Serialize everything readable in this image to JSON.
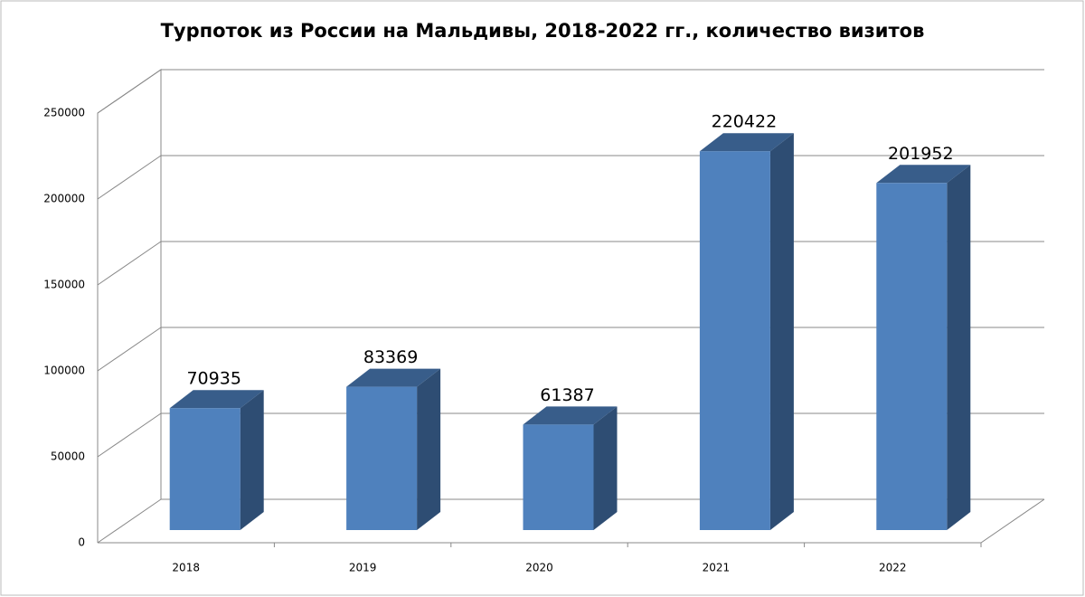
{
  "chart_data": {
    "type": "bar3d",
    "title": "Турпоток из России на Мальдивы, 2018-2022 гг., количество визитов",
    "categories": [
      "2018",
      "2019",
      "2020",
      "2021",
      "2022"
    ],
    "values": [
      70935,
      83369,
      61387,
      220422,
      201952
    ],
    "color": "#4f81bd",
    "ylim": [
      0,
      250000
    ],
    "yticks": [
      0,
      50000,
      100000,
      150000,
      200000,
      250000
    ],
    "grid": true
  }
}
